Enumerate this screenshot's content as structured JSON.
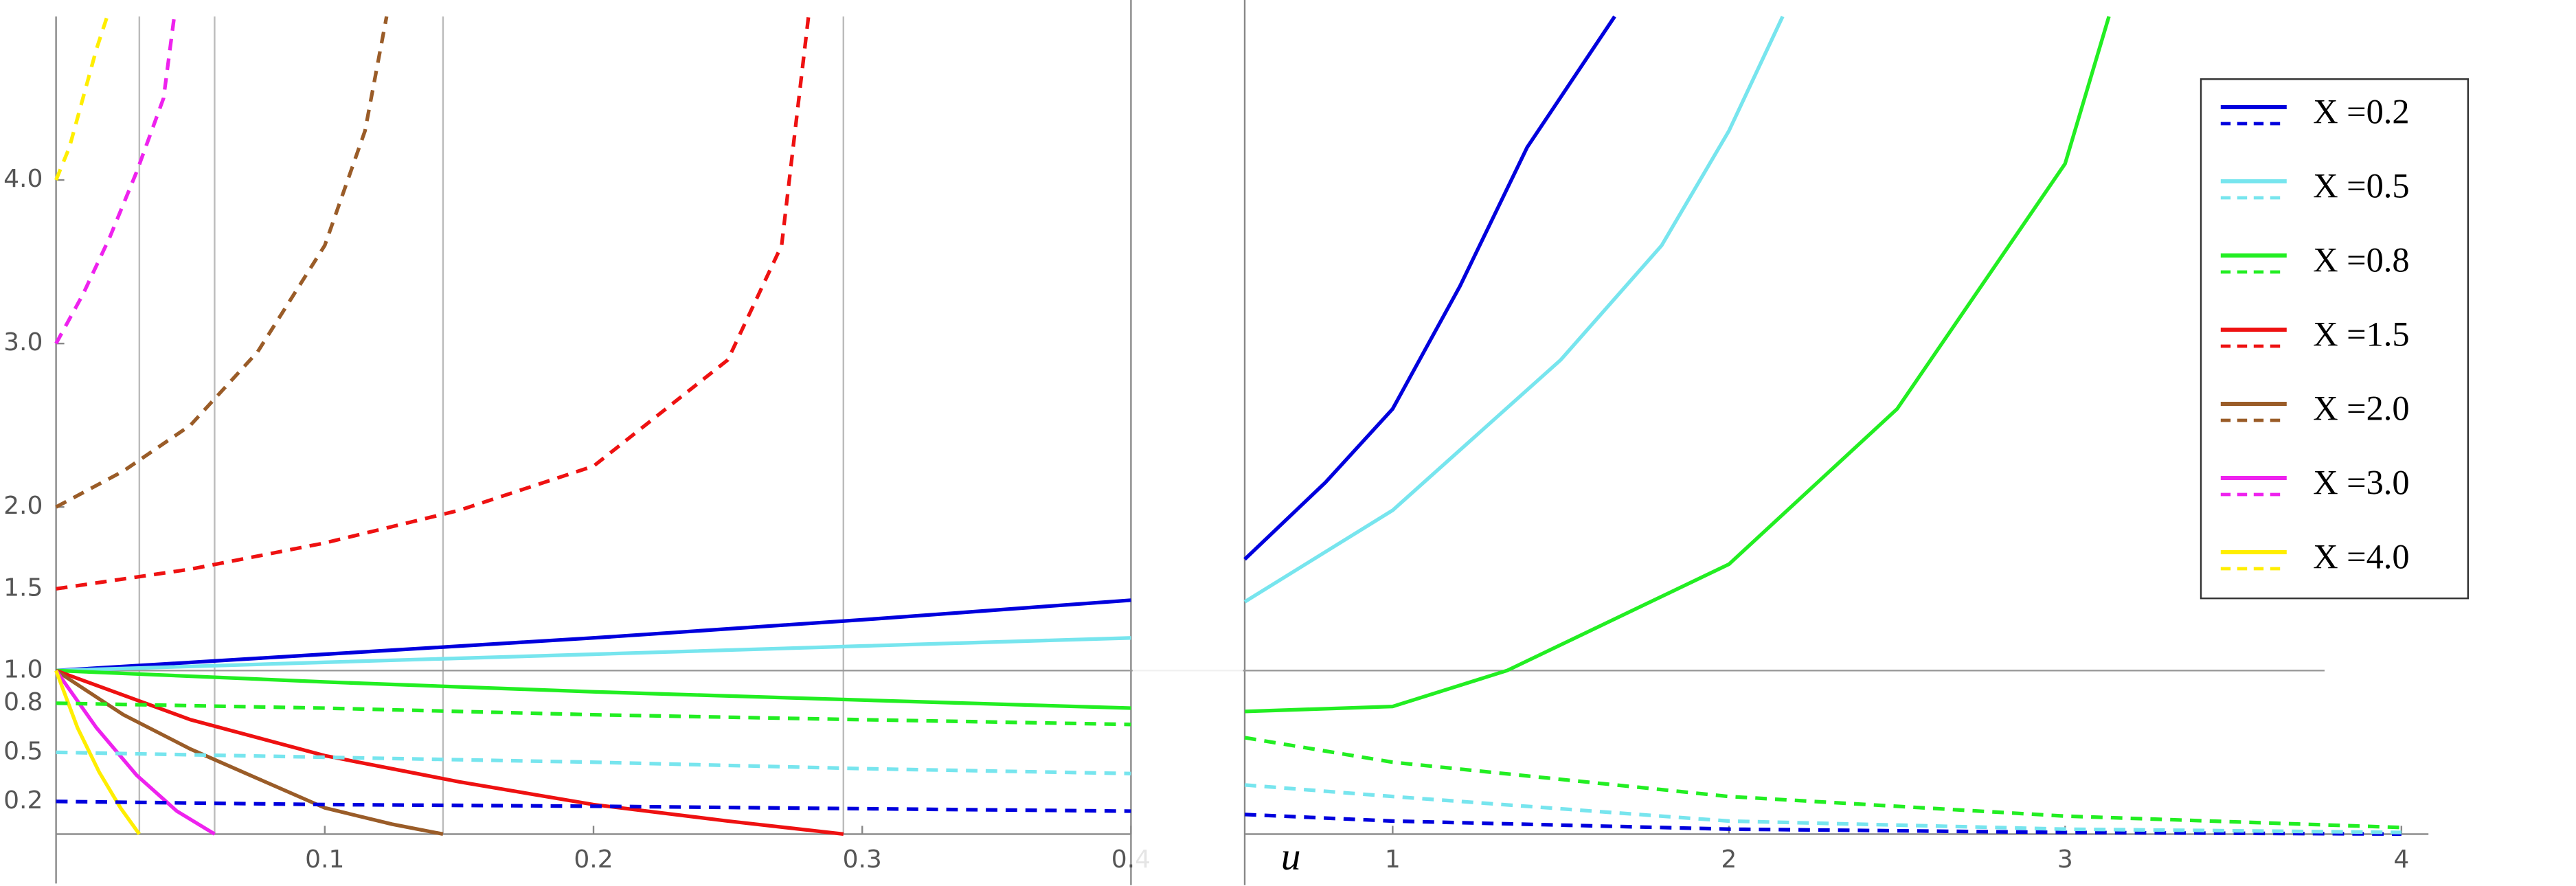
{
  "chart_data": [
    {
      "type": "line",
      "xlim": [
        0,
        0.4
      ],
      "ylim": [
        0,
        5
      ],
      "xticks": [
        0.1,
        0.2,
        0.3,
        0.4
      ],
      "yticks": [
        0.2,
        0.5,
        0.8,
        {
          "value": 1,
          "label": "1.0"
        },
        1.5,
        {
          "value": 2,
          "label": "2.0"
        },
        {
          "value": 3,
          "label": "3.0"
        },
        {
          "value": 4,
          "label": "4.0"
        }
      ],
      "x_gridlines": [
        0.031,
        0.059,
        0.144,
        0.293
      ],
      "hline": 1,
      "legend": "top-right",
      "series": [
        {
          "name": "X =0.2",
          "color": "#0000dd",
          "dash": false,
          "x": [
            0,
            0.1,
            0.2,
            0.3,
            0.4
          ],
          "values": [
            1,
            1.1,
            1.2,
            1.31,
            1.43
          ]
        },
        {
          "name": "X =0.5",
          "color": "#77e5ee",
          "dash": false,
          "x": [
            0,
            0.1,
            0.2,
            0.3,
            0.4
          ],
          "values": [
            1,
            1.05,
            1.1,
            1.15,
            1.2
          ]
        },
        {
          "name": "X =0.8",
          "color": "#22ee22",
          "dash": false,
          "x": [
            0,
            0.1,
            0.2,
            0.3,
            0.4
          ],
          "values": [
            1,
            0.93,
            0.87,
            0.82,
            0.77
          ]
        },
        {
          "name": "X =1.5",
          "color": "#ee1111",
          "dash": false,
          "x": [
            0,
            0.05,
            0.1,
            0.15,
            0.2,
            0.25,
            0.293
          ],
          "values": [
            1,
            0.7,
            0.48,
            0.32,
            0.18,
            0.08,
            0
          ]
        },
        {
          "name": "X =2.0",
          "color": "#9a5c28",
          "dash": false,
          "x": [
            0,
            0.025,
            0.05,
            0.075,
            0.1,
            0.125,
            0.144
          ],
          "values": [
            1,
            0.73,
            0.52,
            0.34,
            0.16,
            0.06,
            0
          ]
        },
        {
          "name": "X =3.0",
          "color": "#ee22ee",
          "dash": false,
          "x": [
            0,
            0.015,
            0.03,
            0.045,
            0.059
          ],
          "values": [
            1,
            0.65,
            0.36,
            0.14,
            0
          ]
        },
        {
          "name": "X =4.0",
          "color": "#ffee00",
          "dash": false,
          "x": [
            0,
            0.008,
            0.016,
            0.024,
            0.031
          ],
          "values": [
            1,
            0.65,
            0.38,
            0.16,
            0
          ]
        },
        {
          "color": "#0000dd",
          "dash": true,
          "x": [
            0,
            0.1,
            0.2,
            0.3,
            0.4
          ],
          "values": [
            0.2,
            0.18,
            0.17,
            0.155,
            0.14
          ]
        },
        {
          "color": "#77e5ee",
          "dash": true,
          "x": [
            0,
            0.1,
            0.2,
            0.3,
            0.4
          ],
          "values": [
            0.5,
            0.47,
            0.44,
            0.4,
            0.37
          ]
        },
        {
          "color": "#22ee22",
          "dash": true,
          "x": [
            0,
            0.1,
            0.2,
            0.3,
            0.4
          ],
          "values": [
            0.8,
            0.77,
            0.73,
            0.7,
            0.67
          ]
        },
        {
          "color": "#ee1111",
          "dash": true,
          "x": [
            0,
            0.05,
            0.1,
            0.15,
            0.2,
            0.25,
            0.27,
            0.28
          ],
          "values": [
            1.5,
            1.62,
            1.78,
            1.98,
            2.25,
            2.9,
            3.6,
            5.0
          ]
        },
        {
          "color": "#9a5c28",
          "dash": true,
          "x": [
            0,
            0.025,
            0.05,
            0.075,
            0.1,
            0.115,
            0.123
          ],
          "values": [
            2,
            2.22,
            2.5,
            2.95,
            3.6,
            4.3,
            5.0
          ]
        },
        {
          "color": "#ee22ee",
          "dash": true,
          "x": [
            0,
            0.01,
            0.02,
            0.03,
            0.04,
            0.044
          ],
          "values": [
            3,
            3.3,
            3.65,
            4.05,
            4.5,
            5.0
          ]
        },
        {
          "color": "#ffee00",
          "dash": true,
          "x": [
            0,
            0.005,
            0.01,
            0.015,
            0.019
          ],
          "values": [
            4,
            4.2,
            4.5,
            4.8,
            5.0
          ]
        }
      ]
    },
    {
      "type": "line",
      "xlim": [
        0.56,
        4.1
      ],
      "ylim": [
        0,
        5
      ],
      "xticks": [
        1,
        2,
        3,
        4
      ],
      "xlabel": "u",
      "series": [
        {
          "color": "#0000dd",
          "dash": false,
          "x": [
            0.56,
            0.8,
            1,
            1.2,
            1.4,
            1.66
          ],
          "values": [
            1.68,
            2.15,
            2.6,
            3.35,
            4.2,
            5.0
          ]
        },
        {
          "color": "#77e5ee",
          "dash": false,
          "x": [
            0.56,
            1,
            1.5,
            1.8,
            2,
            2.16
          ],
          "values": [
            1.42,
            1.98,
            2.9,
            3.6,
            4.3,
            5.0
          ]
        },
        {
          "color": "#22ee22",
          "dash": false,
          "x": [
            0.56,
            1,
            1.34,
            2,
            2.5,
            3,
            3.13
          ],
          "values": [
            0.75,
            0.78,
            1.0,
            1.65,
            2.6,
            4.1,
            5.0
          ]
        },
        {
          "color": "#0000dd",
          "dash": true,
          "x": [
            0.56,
            1,
            2,
            3,
            4
          ],
          "values": [
            0.12,
            0.08,
            0.03,
            0.01,
            0.0
          ]
        },
        {
          "color": "#77e5ee",
          "dash": true,
          "x": [
            0.56,
            1,
            2,
            3,
            4
          ],
          "values": [
            0.3,
            0.23,
            0.08,
            0.03,
            0.01
          ]
        },
        {
          "color": "#22ee22",
          "dash": true,
          "x": [
            0.56,
            1,
            2,
            3,
            4
          ],
          "values": [
            0.59,
            0.44,
            0.23,
            0.11,
            0.04
          ]
        }
      ]
    }
  ]
}
